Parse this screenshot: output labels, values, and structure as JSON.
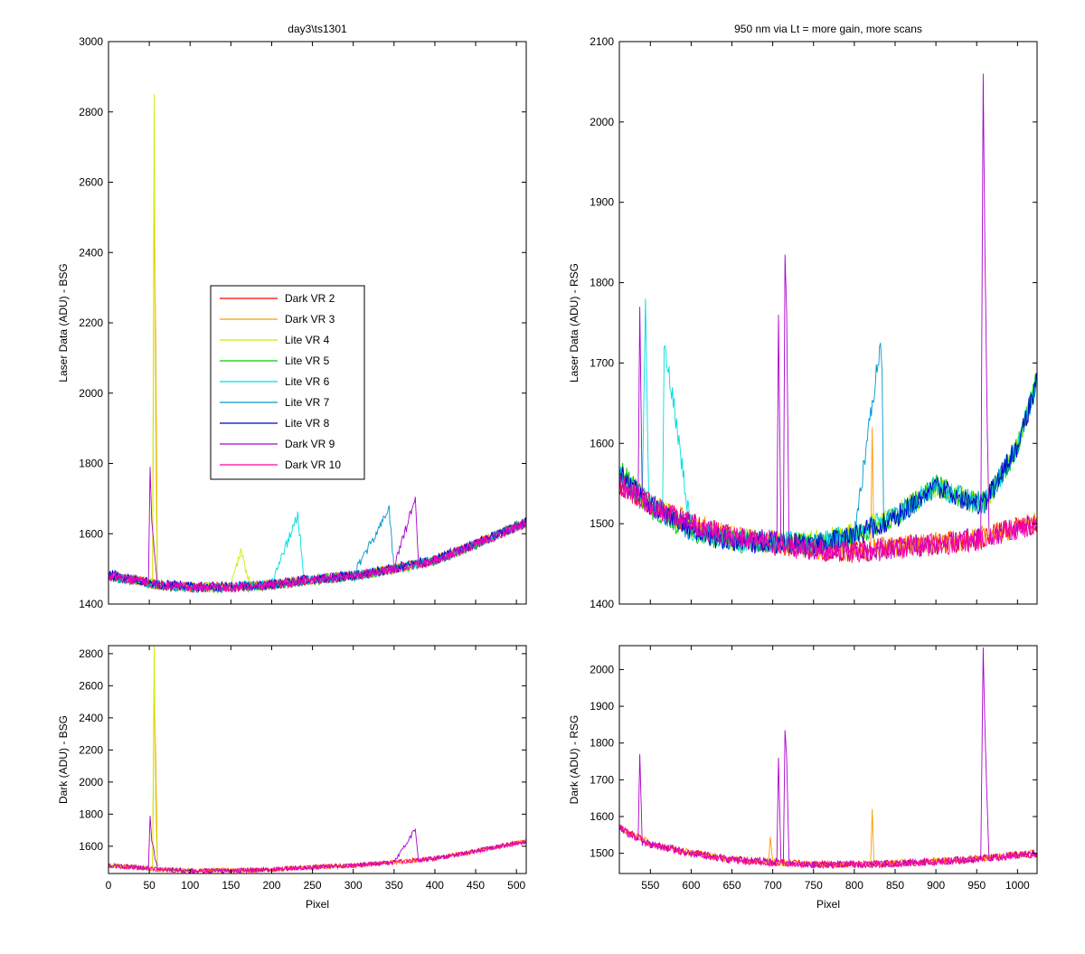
{
  "chart_data": [
    {
      "type": "line",
      "title": "day3\\ts1301",
      "xlabel": "",
      "ylabel": "Laser Data (ADU) - BSG",
      "xlim": [
        0,
        512
      ],
      "ylim": [
        1400,
        3000
      ],
      "xticks": [],
      "yticks": [
        1400,
        1600,
        1800,
        2000,
        2200,
        2400,
        2600,
        2800,
        3000
      ],
      "grid": false,
      "legend": "center-left",
      "series": [
        {
          "name": "Dark VR 2",
          "color": "#ff0000",
          "x": [
            0,
            30,
            60,
            100,
            150,
            200,
            250,
            300,
            350,
            400,
            450,
            500,
            512
          ],
          "y": [
            1480,
            1470,
            1455,
            1448,
            1448,
            1455,
            1470,
            1480,
            1500,
            1525,
            1570,
            1620,
            1630
          ]
        },
        {
          "name": "Dark VR 3",
          "color": "#ff9900",
          "x": [
            0,
            30,
            54,
            56,
            58,
            60,
            100,
            150,
            200,
            250,
            300,
            350,
            400,
            450,
            500,
            512
          ],
          "y": [
            1480,
            1470,
            1460,
            2540,
            2160,
            1455,
            1448,
            1448,
            1455,
            1470,
            1480,
            1500,
            1525,
            1570,
            1620,
            1630
          ]
        },
        {
          "name": "Lite VR 4",
          "color": "#ccee00",
          "x": [
            0,
            30,
            54,
            56,
            58,
            60,
            100,
            150,
            162,
            175,
            200,
            250,
            300,
            350,
            400,
            450,
            500,
            512
          ],
          "y": [
            1480,
            1470,
            1460,
            2850,
            1800,
            1455,
            1448,
            1448,
            1550,
            1450,
            1455,
            1470,
            1480,
            1500,
            1525,
            1570,
            1620,
            1630
          ]
        },
        {
          "name": "Lite VR 5",
          "color": "#00cc00",
          "x": [
            0,
            30,
            60,
            100,
            150,
            200,
            250,
            300,
            350,
            400,
            450,
            500,
            512
          ],
          "y": [
            1475,
            1468,
            1452,
            1445,
            1445,
            1452,
            1468,
            1478,
            1498,
            1522,
            1568,
            1625,
            1635
          ]
        },
        {
          "name": "Lite VR 6",
          "color": "#00dddd",
          "x": [
            0,
            30,
            60,
            100,
            150,
            200,
            232,
            240,
            250,
            300,
            350,
            400,
            450,
            500,
            512
          ],
          "y": [
            1482,
            1472,
            1456,
            1449,
            1449,
            1456,
            1655,
            1462,
            1470,
            1480,
            1500,
            1525,
            1570,
            1620,
            1630
          ]
        },
        {
          "name": "Lite VR 7",
          "color": "#0099cc",
          "x": [
            0,
            30,
            60,
            100,
            150,
            200,
            250,
            300,
            344,
            350,
            400,
            450,
            500,
            512
          ],
          "y": [
            1478,
            1469,
            1454,
            1447,
            1447,
            1454,
            1469,
            1479,
            1670,
            1500,
            1524,
            1569,
            1619,
            1629
          ]
        },
        {
          "name": "Lite VR 8",
          "color": "#0000cc",
          "x": [
            0,
            30,
            60,
            100,
            150,
            200,
            250,
            300,
            350,
            400,
            450,
            500,
            512
          ],
          "y": [
            1485,
            1473,
            1458,
            1450,
            1450,
            1457,
            1472,
            1482,
            1502,
            1527,
            1572,
            1622,
            1632
          ]
        },
        {
          "name": "Dark VR 9",
          "color": "#aa00cc",
          "x": [
            0,
            30,
            49,
            51,
            53,
            60,
            100,
            150,
            200,
            250,
            300,
            350,
            376,
            380,
            400,
            450,
            500,
            512
          ],
          "y": [
            1480,
            1470,
            1462,
            1790,
            1640,
            1455,
            1448,
            1448,
            1455,
            1470,
            1480,
            1500,
            1705,
            1510,
            1525,
            1570,
            1620,
            1630
          ]
        },
        {
          "name": "Dark VR 10",
          "color": "#ff00aa",
          "x": [
            0,
            30,
            60,
            100,
            150,
            200,
            250,
            300,
            350,
            400,
            450,
            500,
            512
          ],
          "y": [
            1479,
            1469,
            1454,
            1447,
            1447,
            1454,
            1469,
            1479,
            1499,
            1524,
            1569,
            1619,
            1629
          ]
        }
      ]
    },
    {
      "type": "line",
      "title": "950 nm via Lt = more gain, more scans",
      "xlabel": "",
      "ylabel": "Laser Data (ADU) - RSG",
      "xlim": [
        512,
        1024
      ],
      "ylim": [
        1400,
        2100
      ],
      "xticks": [],
      "yticks": [
        1400,
        1500,
        1600,
        1700,
        1800,
        1900,
        2000,
        2100
      ],
      "grid": false,
      "series": [
        {
          "name": "Dark VR 2",
          "color": "#ff0000",
          "x": [
            512,
            550,
            600,
            650,
            700,
            750,
            800,
            850,
            900,
            950,
            1000,
            1024
          ],
          "y": [
            1550,
            1525,
            1500,
            1483,
            1475,
            1468,
            1465,
            1470,
            1475,
            1480,
            1495,
            1500
          ]
        },
        {
          "name": "Dark VR 3",
          "color": "#ff9900",
          "x": [
            512,
            550,
            600,
            650,
            700,
            750,
            800,
            820,
            822,
            824,
            850,
            900,
            950,
            1000,
            1024
          ],
          "y": [
            1552,
            1526,
            1501,
            1484,
            1476,
            1469,
            1466,
            1470,
            1620,
            1470,
            1471,
            1476,
            1481,
            1496,
            1501
          ]
        },
        {
          "name": "Lite VR 4",
          "color": "#ccee00",
          "x": [
            512,
            550,
            600,
            650,
            700,
            750,
            800,
            850,
            900,
            940,
            960,
            1000,
            1024
          ],
          "y": [
            1565,
            1525,
            1495,
            1480,
            1480,
            1478,
            1488,
            1510,
            1545,
            1530,
            1525,
            1595,
            1675
          ]
        },
        {
          "name": "Lite VR 5",
          "color": "#00cc00",
          "x": [
            512,
            550,
            600,
            650,
            700,
            750,
            800,
            850,
            900,
            940,
            960,
            1000,
            1024
          ],
          "y": [
            1568,
            1520,
            1490,
            1478,
            1476,
            1474,
            1485,
            1508,
            1550,
            1528,
            1527,
            1598,
            1680
          ]
        },
        {
          "name": "Lite VR 6",
          "color": "#00dddd",
          "x": [
            512,
            540,
            544,
            548,
            565,
            567,
            600,
            650,
            700,
            750,
            800,
            850,
            900,
            940,
            960,
            1000,
            1024
          ],
          "y": [
            1562,
            1530,
            1780,
            1525,
            1515,
            1728,
            1493,
            1479,
            1478,
            1476,
            1487,
            1509,
            1547,
            1529,
            1526,
            1596,
            1677
          ]
        },
        {
          "name": "Lite VR 7",
          "color": "#0099cc",
          "x": [
            512,
            550,
            600,
            650,
            700,
            750,
            800,
            832,
            834,
            836,
            850,
            900,
            940,
            960,
            1000,
            1024
          ],
          "y": [
            1560,
            1523,
            1492,
            1479,
            1477,
            1475,
            1486,
            1725,
            1690,
            1500,
            1509,
            1546,
            1529,
            1526,
            1596,
            1676
          ]
        },
        {
          "name": "Lite VR 8",
          "color": "#0000cc",
          "x": [
            512,
            550,
            600,
            650,
            700,
            750,
            800,
            850,
            900,
            940,
            960,
            1000,
            1024
          ],
          "y": [
            1563,
            1522,
            1491,
            1478,
            1476,
            1474,
            1484,
            1507,
            1548,
            1527,
            1525,
            1597,
            1678
          ]
        },
        {
          "name": "Dark VR 9",
          "color": "#aa00cc",
          "x": [
            512,
            535,
            537,
            540,
            550,
            600,
            650,
            705,
            707,
            710,
            713,
            715,
            717,
            720,
            750,
            800,
            850,
            900,
            955,
            958,
            960,
            965,
            1000,
            1024
          ],
          "y": [
            1551,
            1535,
            1770,
            1530,
            1524,
            1500,
            1483,
            1478,
            1760,
            1480,
            1476,
            1835,
            1765,
            1474,
            1468,
            1465,
            1470,
            1475,
            1482,
            2060,
            1840,
            1485,
            1495,
            1500
          ]
        },
        {
          "name": "Dark VR 10",
          "color": "#ff00aa",
          "x": [
            512,
            550,
            600,
            650,
            700,
            750,
            800,
            850,
            900,
            950,
            1000,
            1024
          ],
          "y": [
            1549,
            1524,
            1499,
            1482,
            1474,
            1467,
            1464,
            1469,
            1474,
            1479,
            1494,
            1499
          ]
        }
      ]
    },
    {
      "type": "line",
      "title": "",
      "xlabel": "Pixel",
      "ylabel": "Dark (ADU) - BSG",
      "xlim": [
        0,
        512
      ],
      "ylim": [
        1430,
        2850
      ],
      "xticks": [
        0,
        50,
        100,
        150,
        200,
        250,
        300,
        350,
        400,
        450,
        500
      ],
      "yticks": [
        1600,
        1800,
        2000,
        2200,
        2400,
        2600,
        2800
      ],
      "grid": false,
      "series": [
        {
          "name": "Dark VR 2",
          "color": "#ff0000",
          "x": [
            0,
            30,
            60,
            100,
            150,
            200,
            250,
            300,
            350,
            400,
            450,
            500,
            512
          ],
          "y": [
            1480,
            1470,
            1455,
            1448,
            1448,
            1455,
            1470,
            1480,
            1500,
            1525,
            1570,
            1620,
            1630
          ]
        },
        {
          "name": "Dark VR 3",
          "color": "#ff9900",
          "x": [
            0,
            30,
            54,
            56,
            58,
            60,
            100,
            150,
            200,
            250,
            300,
            350,
            400,
            450,
            500,
            512
          ],
          "y": [
            1480,
            1470,
            1460,
            2540,
            2160,
            1455,
            1448,
            1448,
            1455,
            1470,
            1480,
            1500,
            1525,
            1570,
            1620,
            1630
          ]
        },
        {
          "name": "Lite VR 4",
          "color": "#ccee00",
          "x": [
            0,
            30,
            54,
            56,
            58,
            60,
            100
          ],
          "y": [
            1480,
            1470,
            1460,
            2850,
            1800,
            1455,
            1448
          ]
        },
        {
          "name": "Dark VR 9",
          "color": "#aa00cc",
          "x": [
            0,
            30,
            49,
            51,
            53,
            60,
            100,
            150,
            200,
            250,
            300,
            350,
            376,
            380,
            400,
            450,
            500,
            512
          ],
          "y": [
            1480,
            1470,
            1462,
            1790,
            1640,
            1455,
            1448,
            1448,
            1455,
            1470,
            1480,
            1500,
            1705,
            1510,
            1525,
            1570,
            1620,
            1630
          ]
        },
        {
          "name": "Dark VR 10",
          "color": "#ff00aa",
          "x": [
            0,
            30,
            60,
            100,
            150,
            200,
            250,
            300,
            350,
            400,
            450,
            500,
            512
          ],
          "y": [
            1479,
            1469,
            1454,
            1447,
            1447,
            1454,
            1469,
            1479,
            1499,
            1524,
            1569,
            1619,
            1629
          ]
        }
      ]
    },
    {
      "type": "line",
      "title": "",
      "xlabel": "Pixel",
      "ylabel": "Dark (ADU) - RSG",
      "xlim": [
        512,
        1024
      ],
      "ylim": [
        1445,
        2065
      ],
      "xticks": [
        550,
        600,
        650,
        700,
        750,
        800,
        850,
        900,
        950,
        1000
      ],
      "yticks": [
        1500,
        1600,
        1700,
        1800,
        1900,
        2000
      ],
      "grid": false,
      "series": [
        {
          "name": "Dark VR 2",
          "color": "#ff0000",
          "x": [
            512,
            550,
            600,
            650,
            700,
            750,
            800,
            850,
            900,
            950,
            1000,
            1024
          ],
          "y": [
            1570,
            1525,
            1500,
            1483,
            1475,
            1470,
            1470,
            1472,
            1478,
            1485,
            1495,
            1500
          ]
        },
        {
          "name": "Dark VR 3",
          "color": "#ff9900",
          "x": [
            512,
            550,
            600,
            650,
            695,
            697,
            700,
            750,
            800,
            820,
            822,
            824,
            850,
            900,
            950,
            1000,
            1024
          ],
          "y": [
            1572,
            1526,
            1501,
            1484,
            1476,
            1545,
            1476,
            1471,
            1471,
            1472,
            1620,
            1472,
            1473,
            1479,
            1486,
            1496,
            1501
          ]
        },
        {
          "name": "Dark VR 9",
          "color": "#aa00cc",
          "x": [
            512,
            535,
            537,
            540,
            550,
            600,
            650,
            705,
            707,
            710,
            713,
            715,
            717,
            720,
            750,
            800,
            850,
            900,
            955,
            958,
            960,
            965,
            1000,
            1024
          ],
          "y": [
            1571,
            1535,
            1770,
            1530,
            1524,
            1500,
            1483,
            1478,
            1760,
            1480,
            1476,
            1835,
            1765,
            1474,
            1470,
            1470,
            1472,
            1478,
            1484,
            2060,
            1840,
            1487,
            1495,
            1500
          ]
        },
        {
          "name": "Dark VR 10",
          "color": "#ff00aa",
          "x": [
            512,
            550,
            600,
            650,
            700,
            750,
            800,
            850,
            900,
            950,
            1000,
            1024
          ],
          "y": [
            1569,
            1524,
            1499,
            1482,
            1474,
            1469,
            1469,
            1471,
            1477,
            1484,
            1494,
            1499
          ]
        }
      ]
    }
  ]
}
